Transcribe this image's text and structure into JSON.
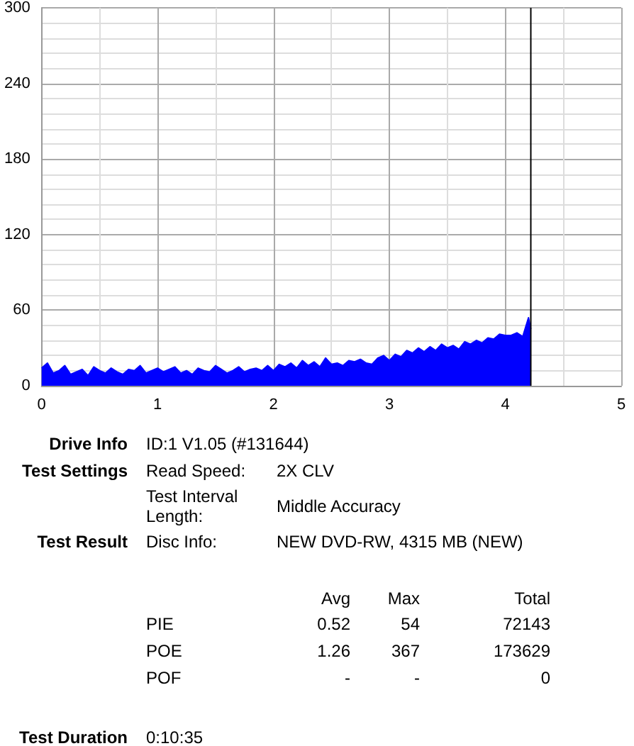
{
  "chart_data": {
    "type": "area",
    "xlim": [
      0,
      5
    ],
    "xticks": [
      0,
      1,
      2,
      3,
      4,
      5
    ],
    "ylim": [
      0,
      300
    ],
    "yticks": [
      0,
      60,
      120,
      180,
      240,
      300
    ],
    "grid": true,
    "series": [
      {
        "color": "#0000ff",
        "x": [
          0,
          0.05,
          0.1,
          0.15,
          0.2,
          0.25,
          0.3,
          0.35,
          0.4,
          0.45,
          0.5,
          0.55,
          0.6,
          0.65,
          0.7,
          0.75,
          0.8,
          0.85,
          0.9,
          0.95,
          1,
          1.05,
          1.1,
          1.15,
          1.2,
          1.25,
          1.3,
          1.35,
          1.4,
          1.45,
          1.5,
          1.55,
          1.6,
          1.65,
          1.7,
          1.75,
          1.8,
          1.85,
          1.9,
          1.95,
          2,
          2.05,
          2.1,
          2.15,
          2.2,
          2.25,
          2.3,
          2.35,
          2.4,
          2.45,
          2.5,
          2.55,
          2.6,
          2.65,
          2.7,
          2.75,
          2.8,
          2.85,
          2.9,
          2.95,
          3,
          3.05,
          3.1,
          3.15,
          3.2,
          3.25,
          3.3,
          3.35,
          3.4,
          3.45,
          3.5,
          3.55,
          3.6,
          3.65,
          3.7,
          3.75,
          3.8,
          3.85,
          3.9,
          3.95,
          4,
          4.05,
          4.1,
          4.15,
          4.2,
          4.22
        ],
        "values": [
          14,
          18,
          10,
          12,
          16,
          9,
          11,
          13,
          8,
          15,
          12,
          10,
          14,
          11,
          9,
          13,
          12,
          16,
          10,
          12,
          14,
          11,
          13,
          15,
          10,
          12,
          9,
          14,
          12,
          11,
          16,
          13,
          10,
          12,
          15,
          11,
          13,
          14,
          12,
          16,
          12,
          17,
          15,
          18,
          14,
          20,
          16,
          19,
          15,
          22,
          17,
          18,
          16,
          20,
          19,
          21,
          18,
          17,
          22,
          24,
          20,
          25,
          23,
          28,
          26,
          30,
          27,
          31,
          28,
          33,
          30,
          32,
          29,
          35,
          33,
          36,
          34,
          38,
          37,
          41,
          40,
          40,
          42,
          39,
          54,
          45
        ]
      },
      {
        "type": "line",
        "color": "#000000",
        "x": [
          4.22,
          4.22
        ],
        "values": [
          0,
          300
        ]
      }
    ],
    "annotations": [
      "Drive Info",
      "ID:1 V1.05 (#131644)",
      "Test Settings",
      "Read Speed:",
      "2X CLV",
      "Test Interval Length:",
      "Middle Accuracy",
      "Test Result",
      "Disc Info:",
      "NEW DVD-RW, 4315 MB (NEW)",
      "Avg",
      "Max",
      "Total",
      "PIE",
      "0.52",
      "54",
      "72143",
      "POE",
      "1.26",
      "367",
      "173629",
      "POF",
      "-",
      "-",
      "0",
      "Test Duration",
      "0:10:35"
    ]
  }
}
